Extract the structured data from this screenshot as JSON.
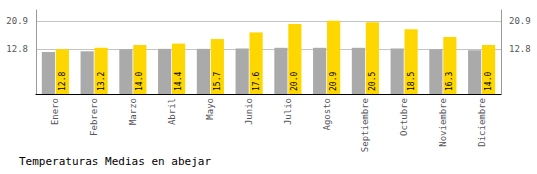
{
  "chart_data": {
    "type": "bar",
    "title": "Temperaturas Medias en abejar",
    "categories": [
      "Enero",
      "Febrero",
      "Marzo",
      "Abril",
      "Mayo",
      "Junio",
      "Julio",
      "Agosto",
      "Septiembre",
      "Octubre",
      "Noviembre",
      "Diciembre"
    ],
    "series": [
      {
        "color": "#AAAAAA",
        "values": [
          12.0,
          12.2,
          12.8,
          12.9,
          12.9,
          13.0,
          13.2,
          13.2,
          13.2,
          13.0,
          12.8,
          12.5
        ]
      },
      {
        "color": "#FFD700",
        "values": [
          12.8,
          13.2,
          14.0,
          14.4,
          15.7,
          17.6,
          20.0,
          20.9,
          20.5,
          18.5,
          16.3,
          14.0
        ],
        "value_labels": [
          "12.8",
          "13.2",
          "14.0",
          "14.4",
          "15.7",
          "17.6",
          "20.0",
          "20.9",
          "20.5",
          "18.5",
          "16.3",
          "14.0"
        ],
        "data_labels": true
      }
    ],
    "ylim": [
      0,
      24
    ],
    "yticks": [
      12.8,
      20.9
    ],
    "y2lim": [
      0,
      24
    ],
    "y2ticks": [
      12.8,
      20.9
    ],
    "grid": true
  }
}
